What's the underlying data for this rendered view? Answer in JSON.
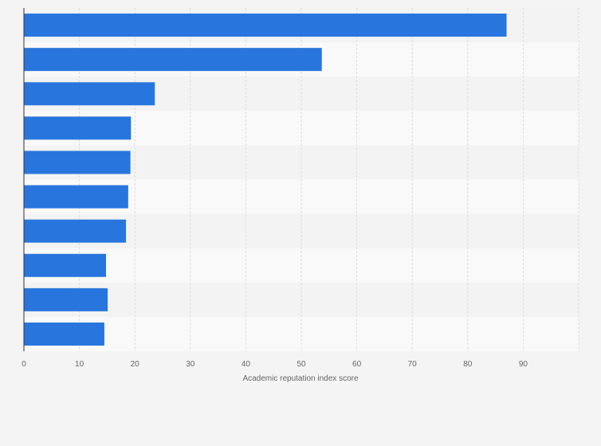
{
  "chart_data": {
    "type": "bar",
    "orientation": "horizontal",
    "title": "",
    "xlabel": "Academic reputation index score",
    "ylabel": "",
    "categories": [
      "",
      "",
      "",
      "",
      "",
      "",
      "",
      "",
      "",
      ""
    ],
    "values": [
      87,
      53.7,
      23.6,
      19.3,
      19.2,
      18.8,
      18.4,
      14.8,
      15.1,
      14.5
    ],
    "xlim": [
      0,
      100
    ],
    "x_ticks": [
      0,
      10,
      20,
      30,
      40,
      50,
      60,
      70,
      80,
      90
    ],
    "grid": true,
    "legend": "none",
    "colors": {
      "bar": "#2876dd",
      "band_light": "#f9f9f9",
      "band_dark": "#f3f3f3",
      "grid": "#dddddd",
      "axis": "#333333",
      "text": "#666666",
      "page_bg": "#f4f4f4"
    }
  }
}
